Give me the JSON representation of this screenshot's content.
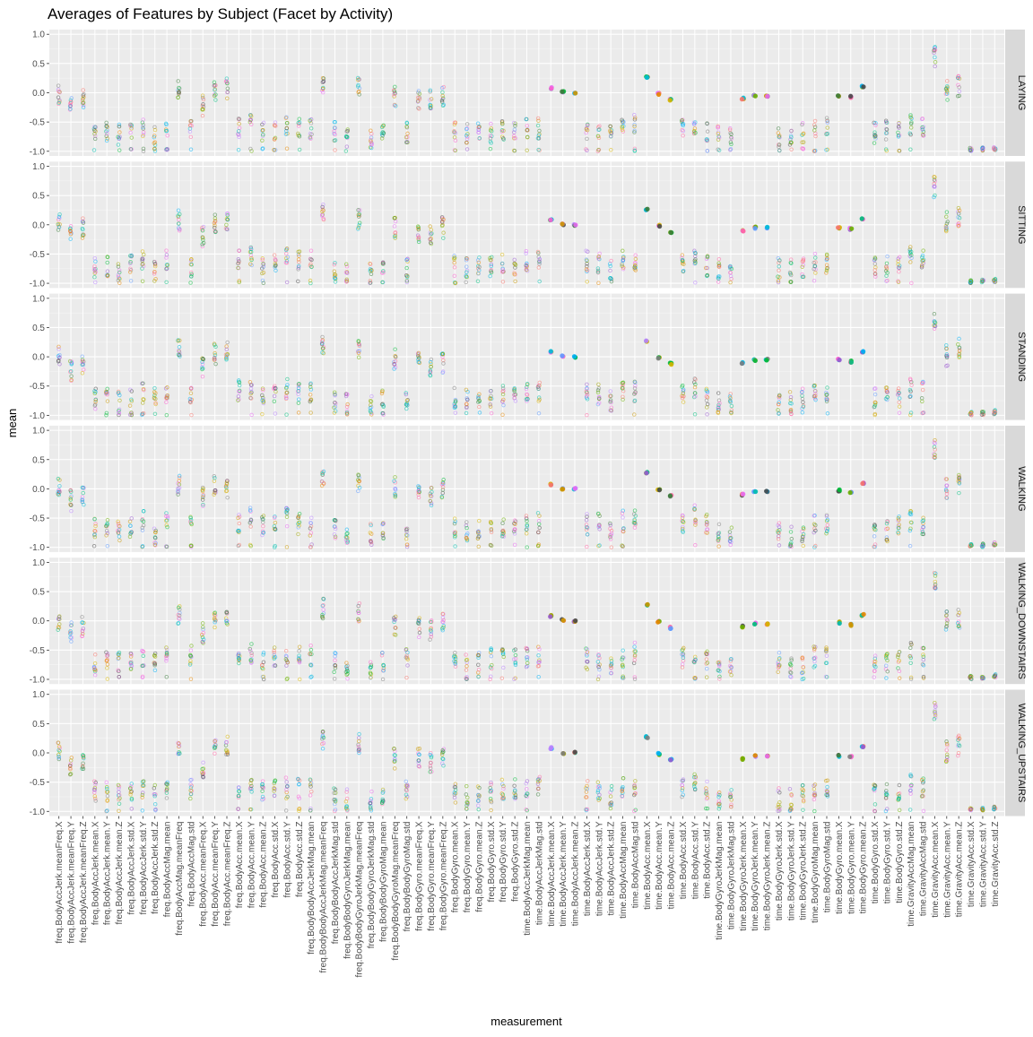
{
  "chart_data": {
    "type": "scatter",
    "title": "Averages of Features by Subject (Facet by Activity)",
    "xlabel": "measurement",
    "ylabel": "mean",
    "ylim": [
      -1.08,
      1.08
    ],
    "y_ticks": [
      "1.0",
      "0.5",
      "0.0",
      "-0.5",
      "-1.0"
    ],
    "y_tick_values": [
      1.0,
      0.5,
      0.0,
      -0.5,
      -1.0
    ],
    "grid": true,
    "facets": [
      "LAYING",
      "SITTING",
      "STANDING",
      "WALKING",
      "WALKING_DOWNSTAIRS",
      "WALKING_UPSTAIRS"
    ],
    "colors": {
      "panel_bg": "#ebebeb",
      "grid_major": "#ffffff",
      "strip_bg": "#d9d9d9",
      "subjects": [
        "#f8766d",
        "#e58700",
        "#c99800",
        "#a3a500",
        "#6bb100",
        "#00ba38",
        "#00bf7d",
        "#00c0af",
        "#00bcd8",
        "#00b0f6",
        "#619cff",
        "#b983ff",
        "#e76bf3",
        "#fd61d1",
        "#ff67a4",
        "#7f7f7f",
        "#4b4b4b",
        "#d7b400",
        "#9a5bd0",
        "#3c7d3c"
      ]
    },
    "categories": [
      "freq.BodyAccJerk.meanFreq.X",
      "freq.BodyAccJerk.meanFreq.Y",
      "freq.BodyAccJerk.meanFreq.Z",
      "freq.BodyAccJerk.mean.X",
      "freq.BodyAccJerk.mean.Y",
      "freq.BodyAccJerk.mean.Z",
      "freq.BodyAccJerk.std.X",
      "freq.BodyAccJerk.std.Y",
      "freq.BodyAccJerk.std.Z",
      "freq.BodyAccMag.mean",
      "freq.BodyAccMag.meanFreq",
      "freq.BodyAccMag.std",
      "freq.BodyAcc.meanFreq.X",
      "freq.BodyAcc.meanFreq.Y",
      "freq.BodyAcc.meanFreq.Z",
      "freq.BodyAcc.mean.X",
      "freq.BodyAcc.mean.Y",
      "freq.BodyAcc.mean.Z",
      "freq.BodyAcc.std.X",
      "freq.BodyAcc.std.Y",
      "freq.BodyAcc.std.Z",
      "freq.BodyBodyAccJerkMag.mean",
      "freq.BodyBodyAccJerkMag.meanFreq",
      "freq.BodyBodyAccJerkMag.std",
      "freq.BodyBodyGyroJerkMag.mean",
      "freq.BodyBodyGyroJerkMag.meanFreq",
      "freq.BodyBodyGyroJerkMag.std",
      "freq.BodyBodyGyroMag.mean",
      "freq.BodyBodyGyroMag.meanFreq",
      "freq.BodyBodyGyroMag.std",
      "freq.BodyGyro.meanFreq.X",
      "freq.BodyGyro.meanFreq.Y",
      "freq.BodyGyro.meanFreq.Z",
      "freq.BodyGyro.mean.X",
      "freq.BodyGyro.mean.Y",
      "freq.BodyGyro.mean.Z",
      "freq.BodyGyro.std.X",
      "freq.BodyGyro.std.Y",
      "freq.BodyGyro.std.Z",
      "time.BodyAccJerkMag.mean",
      "time.BodyAccJerkMag.std",
      "time.BodyAccJerk.mean.X",
      "time.BodyAccJerk.mean.Y",
      "time.BodyAccJerk.mean.Z",
      "time.BodyAccJerk.std.X",
      "time.BodyAccJerk.std.Y",
      "time.BodyAccJerk.std.Z",
      "time.BodyAccMag.mean",
      "time.BodyAccMag.std",
      "time.BodyAcc.mean.X",
      "time.BodyAcc.mean.Y",
      "time.BodyAcc.mean.Z",
      "time.BodyAcc.std.X",
      "time.BodyAcc.std.Y",
      "time.BodyAcc.std.Z",
      "time.BodyGyroJerkMag.mean",
      "time.BodyGyroJerkMag.std",
      "time.BodyGyroJerk.mean.X",
      "time.BodyGyroJerk.mean.Y",
      "time.BodyGyroJerk.mean.Z",
      "time.BodyGyroJerk.std.X",
      "time.BodyGyroJerk.std.Y",
      "time.BodyGyroJerk.std.Z",
      "time.BodyGyroMag.mean",
      "time.BodyGyroMag.std",
      "time.BodyGyro.mean.X",
      "time.BodyGyro.mean.Y",
      "time.BodyGyro.mean.Z",
      "time.BodyGyro.std.X",
      "time.BodyGyro.std.Y",
      "time.BodyGyro.std.Z",
      "time.GravityAccMag.mean",
      "time.GravityAccMag.std",
      "time.GravityAcc.mean.X",
      "time.GravityAcc.mean.Y",
      "time.GravityAcc.mean.Z",
      "time.GravityAcc.std.X",
      "time.GravityAcc.std.Y",
      "time.GravityAcc.std.Z"
    ],
    "series_centers": [
      {
        "facet": "LAYING",
        "values": [
          -0.05,
          -0.2,
          -0.1,
          -0.65,
          -0.65,
          -0.72,
          -0.66,
          -0.58,
          -0.76,
          -0.6,
          0.05,
          -0.65,
          -0.22,
          0.0,
          0.08,
          -0.6,
          -0.55,
          -0.65,
          -0.63,
          -0.58,
          -0.62,
          -0.62,
          0.15,
          -0.65,
          -0.78,
          0.1,
          -0.78,
          -0.7,
          -0.05,
          -0.67,
          -0.1,
          -0.1,
          -0.08,
          -0.65,
          -0.68,
          -0.7,
          -0.68,
          -0.62,
          -0.66,
          -0.62,
          -0.6,
          0.08,
          0.01,
          0.0,
          -0.62,
          -0.62,
          -0.73,
          -0.6,
          -0.55,
          0.27,
          -0.02,
          -0.12,
          -0.6,
          -0.55,
          -0.65,
          -0.75,
          -0.78,
          -0.1,
          -0.05,
          -0.05,
          -0.75,
          -0.75,
          -0.68,
          -0.65,
          -0.6,
          -0.05,
          -0.07,
          0.1,
          -0.68,
          -0.65,
          -0.58,
          -0.55,
          -0.58,
          0.62,
          0.05,
          0.12,
          -0.97,
          -0.96,
          -0.95
        ]
      },
      {
        "facet": "SITTING",
        "values": [
          0.0,
          -0.2,
          -0.05,
          -0.72,
          -0.7,
          -0.78,
          -0.66,
          -0.62,
          -0.8,
          -0.6,
          0.08,
          -0.72,
          -0.2,
          0.0,
          0.08,
          -0.62,
          -0.55,
          -0.68,
          -0.62,
          -0.55,
          -0.62,
          -0.6,
          0.22,
          -0.75,
          -0.82,
          0.1,
          -0.82,
          -0.72,
          -0.05,
          -0.72,
          -0.15,
          -0.15,
          -0.05,
          -0.7,
          -0.72,
          -0.72,
          -0.7,
          -0.65,
          -0.68,
          -0.62,
          -0.6,
          0.08,
          0.01,
          0.0,
          -0.62,
          -0.65,
          -0.75,
          -0.6,
          -0.6,
          0.27,
          -0.02,
          -0.12,
          -0.62,
          -0.5,
          -0.7,
          -0.75,
          -0.78,
          -0.1,
          -0.05,
          -0.05,
          -0.75,
          -0.75,
          -0.72,
          -0.65,
          -0.65,
          -0.05,
          -0.07,
          0.1,
          -0.72,
          -0.7,
          -0.68,
          -0.55,
          -0.6,
          0.65,
          0.05,
          0.12,
          -0.97,
          -0.96,
          -0.95
        ]
      },
      {
        "facet": "STANDING",
        "values": [
          0.0,
          -0.25,
          -0.1,
          -0.72,
          -0.7,
          -0.75,
          -0.66,
          -0.62,
          -0.7,
          -0.6,
          0.15,
          -0.7,
          -0.2,
          0.05,
          0.1,
          -0.58,
          -0.55,
          -0.68,
          -0.62,
          -0.55,
          -0.62,
          -0.6,
          0.22,
          -0.75,
          -0.8,
          0.15,
          -0.82,
          -0.72,
          -0.05,
          -0.72,
          -0.1,
          -0.15,
          -0.1,
          -0.7,
          -0.72,
          -0.72,
          -0.7,
          -0.65,
          -0.68,
          -0.62,
          -0.6,
          0.08,
          0.01,
          0.0,
          -0.65,
          -0.65,
          -0.75,
          -0.6,
          -0.6,
          0.27,
          -0.02,
          -0.12,
          -0.62,
          -0.55,
          -0.7,
          -0.8,
          -0.78,
          -0.1,
          -0.05,
          -0.05,
          -0.8,
          -0.78,
          -0.72,
          -0.65,
          -0.65,
          -0.05,
          -0.08,
          0.08,
          -0.72,
          -0.7,
          -0.68,
          -0.55,
          -0.6,
          0.65,
          0.02,
          0.15,
          -0.97,
          -0.96,
          -0.94
        ]
      },
      {
        "facet": "WALKING",
        "values": [
          0.0,
          -0.2,
          -0.12,
          -0.65,
          -0.62,
          -0.72,
          -0.65,
          -0.55,
          -0.78,
          -0.55,
          0.08,
          -0.62,
          -0.15,
          0.05,
          0.02,
          -0.58,
          -0.5,
          -0.62,
          -0.58,
          -0.48,
          -0.6,
          -0.62,
          0.15,
          -0.68,
          -0.75,
          0.1,
          -0.75,
          -0.7,
          0.02,
          -0.72,
          -0.05,
          -0.15,
          0.0,
          -0.68,
          -0.72,
          -0.72,
          -0.7,
          -0.65,
          -0.6,
          -0.6,
          -0.58,
          0.08,
          0.0,
          0.0,
          -0.6,
          -0.58,
          -0.72,
          -0.55,
          -0.55,
          0.27,
          -0.02,
          -0.12,
          -0.58,
          -0.45,
          -0.6,
          -0.72,
          -0.78,
          -0.1,
          -0.05,
          -0.05,
          -0.75,
          -0.82,
          -0.72,
          -0.62,
          -0.6,
          -0.03,
          -0.07,
          0.1,
          -0.7,
          -0.72,
          -0.65,
          -0.55,
          -0.6,
          0.7,
          0.02,
          0.1,
          -0.97,
          -0.96,
          -0.94
        ]
      },
      {
        "facet": "WALKING_DOWNSTAIRS",
        "values": [
          -0.05,
          -0.2,
          -0.1,
          -0.75,
          -0.68,
          -0.72,
          -0.66,
          -0.6,
          -0.72,
          -0.62,
          0.1,
          -0.6,
          -0.2,
          0.05,
          0.08,
          -0.6,
          -0.55,
          -0.65,
          -0.62,
          -0.6,
          -0.62,
          -0.6,
          0.2,
          -0.72,
          -0.78,
          0.15,
          -0.82,
          -0.72,
          -0.1,
          -0.65,
          -0.1,
          -0.15,
          -0.05,
          -0.72,
          -0.72,
          -0.72,
          -0.65,
          -0.62,
          -0.62,
          -0.62,
          -0.6,
          0.08,
          0.01,
          0.0,
          -0.65,
          -0.68,
          -0.72,
          -0.62,
          -0.55,
          0.27,
          -0.02,
          -0.12,
          -0.62,
          -0.55,
          -0.68,
          -0.78,
          -0.8,
          -0.1,
          -0.05,
          -0.05,
          -0.72,
          -0.78,
          -0.72,
          -0.62,
          -0.62,
          -0.03,
          -0.07,
          0.1,
          -0.72,
          -0.72,
          -0.68,
          -0.55,
          -0.58,
          0.7,
          0.02,
          0.05,
          -0.97,
          -0.96,
          -0.94
        ]
      },
      {
        "facet": "WALKING_UPSTAIRS",
        "values": [
          0.0,
          -0.25,
          -0.1,
          -0.65,
          -0.65,
          -0.72,
          -0.65,
          -0.6,
          -0.72,
          -0.6,
          0.15,
          -0.62,
          -0.25,
          0.05,
          0.1,
          -0.6,
          -0.55,
          -0.65,
          -0.62,
          -0.6,
          -0.62,
          -0.6,
          0.2,
          -0.75,
          -0.78,
          0.15,
          -0.82,
          -0.72,
          -0.1,
          -0.65,
          -0.1,
          -0.15,
          -0.05,
          -0.68,
          -0.72,
          -0.72,
          -0.68,
          -0.62,
          -0.62,
          -0.6,
          -0.58,
          0.08,
          0.0,
          0.0,
          -0.62,
          -0.65,
          -0.72,
          -0.6,
          -0.55,
          0.27,
          -0.02,
          -0.12,
          -0.58,
          -0.5,
          -0.65,
          -0.78,
          -0.8,
          -0.1,
          -0.05,
          -0.05,
          -0.75,
          -0.78,
          -0.72,
          -0.62,
          -0.6,
          -0.05,
          -0.07,
          0.1,
          -0.72,
          -0.7,
          -0.65,
          -0.55,
          -0.58,
          0.72,
          0.02,
          0.12,
          -0.97,
          -0.96,
          -0.94
        ]
      }
    ]
  }
}
